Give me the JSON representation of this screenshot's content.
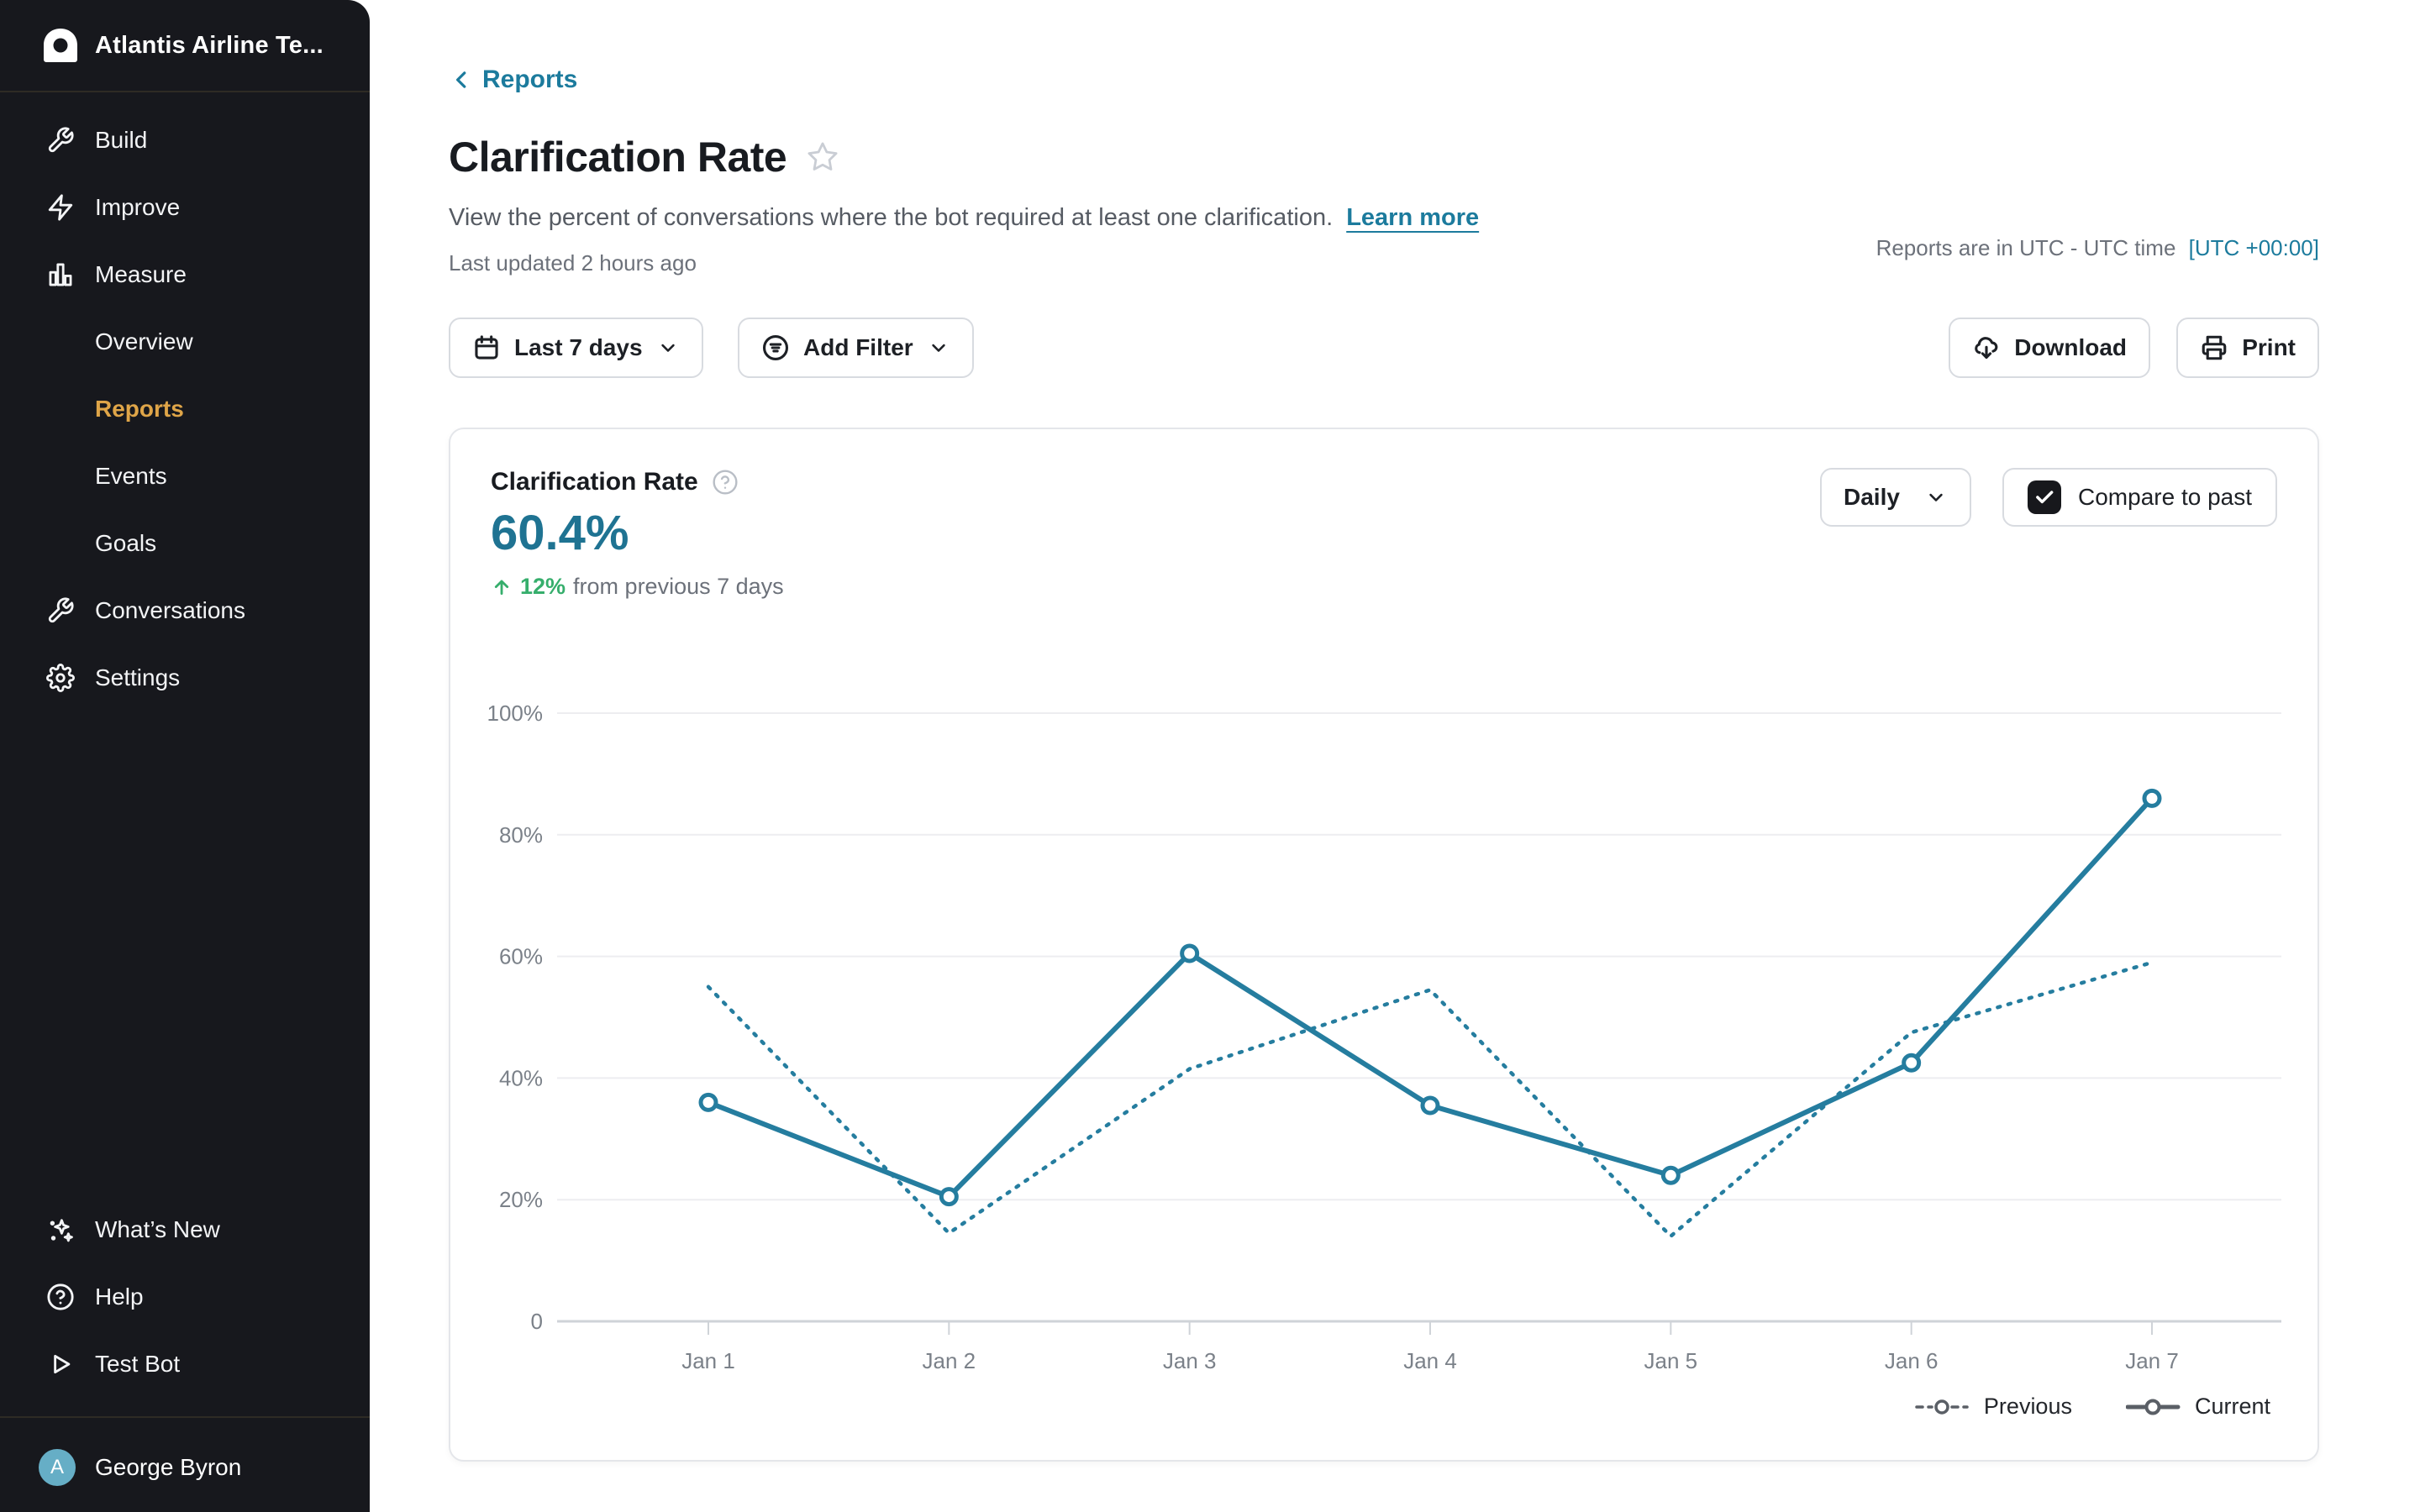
{
  "sidebar": {
    "team_name": "Atlantis Airline Te...",
    "items": [
      {
        "label": "Build",
        "icon": "wrench-icon"
      },
      {
        "label": "Improve",
        "icon": "lightning-icon"
      },
      {
        "label": "Measure",
        "icon": "bar-chart-icon"
      },
      {
        "label": "Overview",
        "icon": null
      },
      {
        "label": "Reports",
        "icon": null,
        "active": true
      },
      {
        "label": "Events",
        "icon": null
      },
      {
        "label": "Goals",
        "icon": null
      },
      {
        "label": "Conversations",
        "icon": "conversations-icon"
      },
      {
        "label": "Settings",
        "icon": "gear-icon"
      }
    ],
    "footer_items": [
      {
        "label": "What’s New",
        "icon": "sparkles-icon"
      },
      {
        "label": "Help",
        "icon": "help-circle-icon"
      },
      {
        "label": "Test Bot",
        "icon": "play-icon"
      }
    ],
    "user": {
      "name": "George Byron",
      "avatar_initial": "A"
    }
  },
  "header": {
    "back_link": "Reports",
    "title": "Clarification Rate",
    "description": "View the percent of conversations where the bot required at least one clarification.",
    "learn_more": "Learn more",
    "last_updated": "Last updated 2 hours ago",
    "timezone_note": "Reports are in UTC - UTC time",
    "timezone_value": "[UTC +00:00]"
  },
  "toolbar": {
    "date_range_label": "Last 7 days",
    "add_filter_label": "Add Filter",
    "download_label": "Download",
    "print_label": "Print"
  },
  "card": {
    "metric_title": "Clarification Rate",
    "metric_value": "60.4%",
    "delta_value": "12%",
    "delta_text": "from previous 7 days",
    "granularity_label": "Daily",
    "compare_label": "Compare to past",
    "legend": [
      {
        "label": "Previous"
      },
      {
        "label": "Current"
      }
    ]
  },
  "chart_data": {
    "type": "line",
    "title": "Clarification Rate",
    "categories": [
      "Jan 1",
      "Jan 2",
      "Jan 3",
      "Jan 4",
      "Jan 5",
      "Jan 6",
      "Jan 7"
    ],
    "series": [
      {
        "name": "Current",
        "style": "solid",
        "values": [
          36,
          20.5,
          60.5,
          35.5,
          24,
          42.5,
          86
        ]
      },
      {
        "name": "Previous",
        "style": "dotted",
        "values": [
          55,
          14.5,
          41.5,
          54.5,
          14,
          47.5,
          59
        ]
      }
    ],
    "unit": "%",
    "xlabel": "",
    "ylabel": "",
    "ylim": [
      0,
      100
    ],
    "y_ticks": [
      {
        "label": "100%",
        "value": 100
      },
      {
        "label": "80%",
        "value": 80
      },
      {
        "label": "60%",
        "value": 60
      },
      {
        "label": "40%",
        "value": 40
      },
      {
        "label": "20%",
        "value": 20
      },
      {
        "label": "0",
        "value": 0
      }
    ],
    "grid": "horizontal",
    "legend_position": "bottom-right"
  },
  "colors": {
    "accent_teal": "#1c7b9d",
    "line_teal": "#257d9f",
    "metric_teal": "#1f7392",
    "delta_green": "#36ae6c",
    "active_gold": "#dfa548",
    "sidebar_bg": "#17181d",
    "grid_gray": "#ededf0",
    "axis_gray": "#cfd3d8",
    "label_gray": "#7b8189",
    "legend_marker_gray": "#5a5f66"
  }
}
